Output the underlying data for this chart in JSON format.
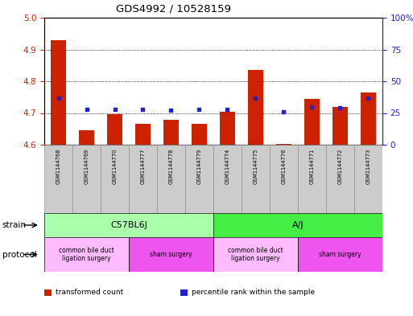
{
  "title": "GDS4992 / 10528159",
  "samples": [
    "GSM1144768",
    "GSM1144769",
    "GSM1144770",
    "GSM1144777",
    "GSM1144778",
    "GSM1144779",
    "GSM1144774",
    "GSM1144775",
    "GSM1144776",
    "GSM1144771",
    "GSM1144772",
    "GSM1144773"
  ],
  "bar_values": [
    4.93,
    4.645,
    4.695,
    4.665,
    4.678,
    4.665,
    4.705,
    4.835,
    4.603,
    4.745,
    4.718,
    4.765
  ],
  "dot_values": [
    37,
    28,
    28,
    28,
    27,
    28,
    28,
    37,
    26,
    30,
    29,
    37
  ],
  "ylim_left": [
    4.6,
    5.0
  ],
  "ylim_right": [
    0,
    100
  ],
  "yticks_left": [
    4.6,
    4.7,
    4.8,
    4.9,
    5.0
  ],
  "yticks_right": [
    0,
    25,
    50,
    75,
    100
  ],
  "ytick_right_labels": [
    "0",
    "25",
    "50",
    "75",
    "100%"
  ],
  "bar_color": "#cc2200",
  "dot_color": "#2222cc",
  "bar_bottom": 4.6,
  "strain_groups": [
    {
      "label": "C57BL6J",
      "start": 0,
      "end": 6,
      "color": "#aaffaa"
    },
    {
      "label": "A/J",
      "start": 6,
      "end": 12,
      "color": "#44ee44"
    }
  ],
  "protocol_groups": [
    {
      "label": "common bile duct\nligation surgery",
      "start": 0,
      "end": 3,
      "color": "#ffbbff"
    },
    {
      "label": "sham surgery",
      "start": 3,
      "end": 6,
      "color": "#ee55ee"
    },
    {
      "label": "common bile duct\nligation surgery",
      "start": 6,
      "end": 9,
      "color": "#ffbbff"
    },
    {
      "label": "sham surgery",
      "start": 9,
      "end": 12,
      "color": "#ee55ee"
    }
  ],
  "legend_items": [
    {
      "label": "transformed count",
      "color": "#cc2200"
    },
    {
      "label": "percentile rank within the sample",
      "color": "#2222cc"
    }
  ],
  "background_color": "#ffffff",
  "plot_bg_color": "#ffffff",
  "tick_color_left": "#cc2200",
  "tick_color_right": "#2222cc",
  "sample_bg_color": "#cccccc",
  "title_fontsize": 9.5,
  "tick_fontsize": 7.5,
  "sample_fontsize": 4.8,
  "strain_fontsize": 8,
  "protocol_fontsize": 5.5,
  "label_fontsize": 7.5,
  "legend_fontsize": 6.5
}
